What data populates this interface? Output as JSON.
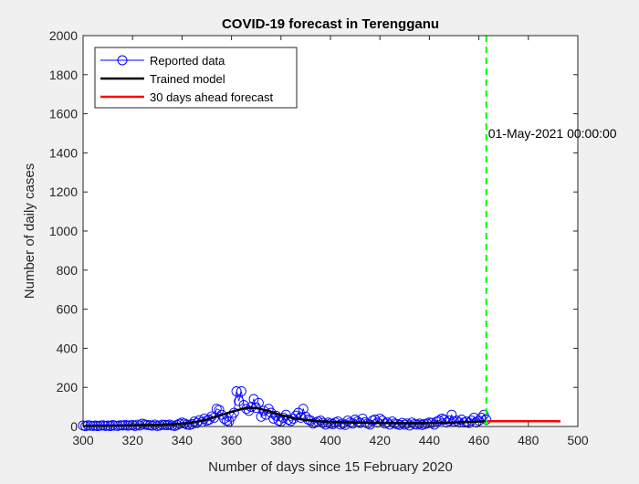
{
  "chart_data": {
    "type": "line",
    "title": "COVID-19 forecast in Terengganu",
    "xlabel": "Number of days since 15 February 2020",
    "ylabel": "Number of daily cases",
    "xlim": [
      300,
      500
    ],
    "ylim": [
      0,
      2000
    ],
    "xticks": [
      "300",
      "320",
      "340",
      "360",
      "380",
      "400",
      "420",
      "440",
      "460",
      "480",
      "500"
    ],
    "yticks": [
      "0",
      "200",
      "400",
      "600",
      "800",
      "1000",
      "1200",
      "1400",
      "1600",
      "1800",
      "2000"
    ],
    "grid": false,
    "legend_location": "top-left",
    "colors": {
      "reported": "#0000ff",
      "trained": "#000000",
      "forecast": "#ff0000",
      "marker_line": "#00ff00"
    },
    "series": [
      {
        "name": "Reported data",
        "style": "line-with-circle-markers",
        "x": [
          300,
          301,
          302,
          303,
          304,
          305,
          306,
          307,
          308,
          309,
          310,
          311,
          312,
          313,
          314,
          315,
          316,
          317,
          318,
          319,
          320,
          321,
          322,
          323,
          324,
          325,
          326,
          327,
          328,
          329,
          330,
          331,
          332,
          333,
          334,
          335,
          336,
          337,
          338,
          339,
          340,
          341,
          342,
          343,
          344,
          345,
          346,
          347,
          348,
          349,
          350,
          351,
          352,
          353,
          354,
          355,
          356,
          357,
          358,
          359,
          360,
          361,
          362,
          363,
          364,
          365,
          366,
          367,
          368,
          369,
          370,
          371,
          372,
          373,
          374,
          375,
          376,
          377,
          378,
          379,
          380,
          381,
          382,
          383,
          384,
          385,
          386,
          387,
          388,
          389,
          390,
          391,
          392,
          393,
          394,
          395,
          396,
          397,
          398,
          399,
          400,
          401,
          402,
          403,
          404,
          405,
          406,
          407,
          408,
          409,
          410,
          411,
          412,
          413,
          414,
          415,
          416,
          417,
          418,
          419,
          420,
          421,
          422,
          423,
          424,
          425,
          426,
          427,
          428,
          429,
          430,
          431,
          432,
          433,
          434,
          435,
          436,
          437,
          438,
          439,
          440,
          441,
          442,
          443,
          444,
          445,
          446,
          447,
          448,
          449,
          450,
          451,
          452,
          453,
          454,
          455,
          456,
          457,
          458,
          459,
          460,
          461,
          462,
          463
        ],
        "y": [
          5,
          2,
          6,
          4,
          3,
          5,
          2,
          4,
          6,
          3,
          5,
          2,
          7,
          4,
          3,
          6,
          5,
          8,
          4,
          6,
          7,
          3,
          9,
          5,
          14,
          10,
          8,
          6,
          4,
          10,
          3,
          5,
          9,
          8,
          6,
          10,
          5,
          3,
          8,
          14,
          20,
          15,
          10,
          8,
          12,
          25,
          18,
          32,
          22,
          40,
          30,
          35,
          52,
          45,
          90,
          85,
          60,
          40,
          30,
          25,
          50,
          70,
          180,
          130,
          180,
          110,
          90,
          80,
          100,
          140,
          95,
          120,
          50,
          80,
          60,
          90,
          70,
          40,
          55,
          30,
          25,
          45,
          60,
          35,
          28,
          40,
          55,
          70,
          45,
          90,
          50,
          35,
          30,
          15,
          20,
          25,
          30,
          18,
          10,
          20,
          15,
          12,
          20,
          25,
          10,
          15,
          8,
          30,
          20,
          15,
          35,
          25,
          18,
          40,
          22,
          15,
          10,
          30,
          35,
          20,
          40,
          30,
          15,
          20,
          10,
          25,
          15,
          12,
          8,
          18,
          10,
          15,
          5,
          20,
          12,
          10,
          15,
          8,
          12,
          15,
          20,
          18,
          10,
          25,
          30,
          40,
          35,
          20,
          30,
          60,
          25,
          30,
          20,
          35,
          20,
          25,
          18,
          30,
          45,
          20,
          30,
          45,
          60,
          35
        ]
      },
      {
        "name": "Trained model",
        "style": "line",
        "x": [
          300,
          310,
          320,
          330,
          340,
          345,
          350,
          355,
          360,
          365,
          368,
          370,
          375,
          380,
          385,
          390,
          395,
          400,
          410,
          420,
          430,
          440,
          450,
          460,
          463
        ],
        "y": [
          2,
          3,
          5,
          8,
          14,
          22,
          35,
          55,
          75,
          92,
          96,
          94,
          80,
          58,
          42,
          33,
          27,
          23,
          20,
          18,
          17,
          18,
          20,
          25,
          27
        ]
      },
      {
        "name": "30 days ahead forecast",
        "style": "line",
        "x": [
          463,
          470,
          480,
          490,
          493
        ],
        "y": [
          27,
          27,
          27,
          27,
          26
        ]
      }
    ],
    "annotations": [
      {
        "x": 463,
        "y": 1500,
        "text": "01-May-2021 00:00:00"
      }
    ],
    "vertical_line_x": 463
  }
}
